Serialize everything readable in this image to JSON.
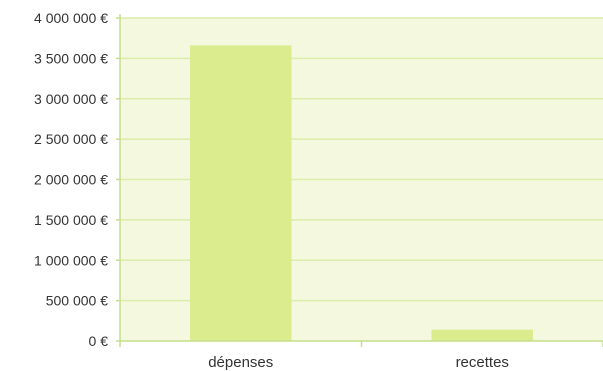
{
  "chart_data": {
    "type": "bar",
    "categories": [
      "dépenses",
      "recettes"
    ],
    "values": [
      3660000,
      140000
    ],
    "ylim": [
      0,
      4000000
    ],
    "yticks": [
      {
        "value": 0,
        "label": "0 €"
      },
      {
        "value": 500000,
        "label": "500 000 €"
      },
      {
        "value": 1000000,
        "label": "1 000 000 €"
      },
      {
        "value": 1500000,
        "label": "1 500 000 €"
      },
      {
        "value": 2000000,
        "label": "2 000 000 €"
      },
      {
        "value": 2500000,
        "label": "2 500 000 €"
      },
      {
        "value": 3000000,
        "label": "3 000 000 €"
      },
      {
        "value": 3500000,
        "label": "3 500 000 €"
      },
      {
        "value": 4000000,
        "label": "4 000 000 €"
      }
    ],
    "grid": true,
    "colors": {
      "bar": "#dbec8e",
      "plot_background": "#f3f8de",
      "grid": "#dcecaa",
      "axis": "#c6dd8a"
    }
  }
}
